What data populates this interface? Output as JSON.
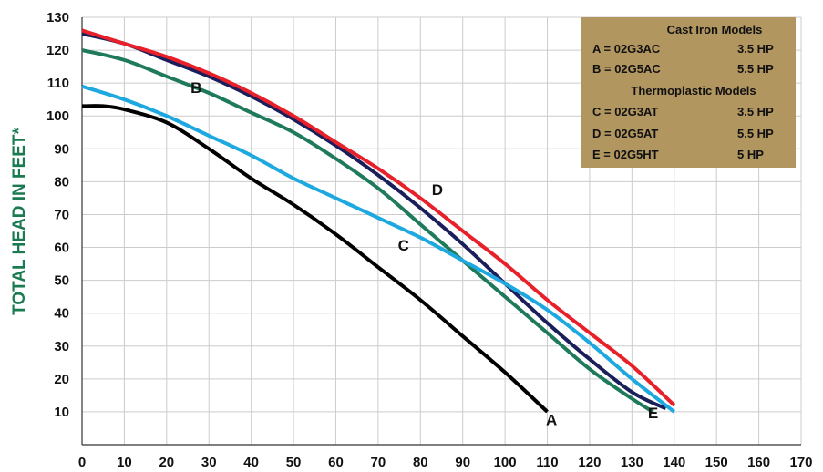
{
  "chart_data": {
    "type": "line",
    "title": "",
    "xlabel": "",
    "ylabel": "TOTAL HEAD IN FEET*",
    "xlim": [
      0,
      170
    ],
    "ylim": [
      0,
      130
    ],
    "x_ticks": [
      0,
      10,
      20,
      30,
      40,
      50,
      60,
      70,
      80,
      90,
      100,
      110,
      120,
      130,
      140,
      150,
      160,
      170
    ],
    "y_ticks": [
      10,
      20,
      30,
      40,
      50,
      60,
      70,
      80,
      90,
      100,
      110,
      120,
      130
    ],
    "grid": true,
    "legend_position": "top-right",
    "colors": {
      "background": "#ffffff",
      "grid": "#cccccc",
      "axis": "#333333",
      "ylabel": "#1a7a50",
      "legend_bg": "#b29660",
      "A": "#000000",
      "B": "#1e7a5a",
      "C": "#1ea8e0",
      "D": "#e8202a",
      "E": "#1a1e5a"
    },
    "legend": {
      "heading_cast_iron": "Cast Iron Models",
      "heading_thermoplastic": "Thermoplastic Models",
      "rows": [
        {
          "model": "A = 02G3AC",
          "hp": "3.5 HP"
        },
        {
          "model": "B = 02G5AC",
          "hp": "5.5 HP"
        },
        {
          "model": "C = 02G3AT",
          "hp": "3.5 HP"
        },
        {
          "model": "D = 02G5AT",
          "hp": "5.5 HP"
        },
        {
          "model": "E = 02G5HT",
          "hp": "5 HP"
        }
      ]
    },
    "series": [
      {
        "name": "E",
        "x": [
          0,
          10,
          20,
          30,
          40,
          50,
          60,
          70,
          80,
          90,
          100,
          110,
          120,
          130,
          138
        ],
        "y": [
          125,
          122,
          117,
          112,
          106,
          99,
          91,
          82,
          72,
          61,
          49,
          37,
          26,
          16,
          11
        ]
      },
      {
        "name": "B",
        "x": [
          0,
          10,
          20,
          30,
          40,
          50,
          60,
          70,
          80,
          90,
          100,
          110,
          120,
          130,
          135
        ],
        "y": [
          120,
          117,
          112,
          107,
          101,
          95,
          87,
          78,
          67,
          56,
          45,
          34,
          23,
          14,
          10
        ]
      },
      {
        "name": "C",
        "x": [
          0,
          10,
          20,
          30,
          40,
          50,
          60,
          70,
          80,
          90,
          100,
          110,
          120,
          130,
          140
        ],
        "y": [
          109,
          105,
          100,
          94,
          88,
          81,
          75,
          69,
          63,
          56,
          49,
          41,
          31,
          20,
          10
        ]
      },
      {
        "name": "A",
        "x": [
          0,
          5,
          10,
          20,
          30,
          40,
          50,
          60,
          70,
          80,
          90,
          100,
          110
        ],
        "y": [
          103,
          103,
          102,
          98,
          90,
          81,
          73,
          64,
          54,
          44,
          33,
          22,
          10
        ]
      },
      {
        "name": "D",
        "x": [
          0,
          10,
          20,
          30,
          40,
          50,
          60,
          70,
          80,
          90,
          100,
          110,
          120,
          130,
          140
        ],
        "y": [
          126,
          122,
          118,
          113,
          107,
          100,
          92,
          84,
          75,
          65,
          55,
          44,
          34,
          24,
          12
        ]
      }
    ],
    "curve_labels": [
      {
        "text": "A",
        "x": 111,
        "y": 6
      },
      {
        "text": "B",
        "x": 27,
        "y": 107
      },
      {
        "text": "C",
        "x": 76,
        "y": 59
      },
      {
        "text": "D",
        "x": 84,
        "y": 76
      },
      {
        "text": "E",
        "x": 135,
        "y": 8
      }
    ]
  }
}
